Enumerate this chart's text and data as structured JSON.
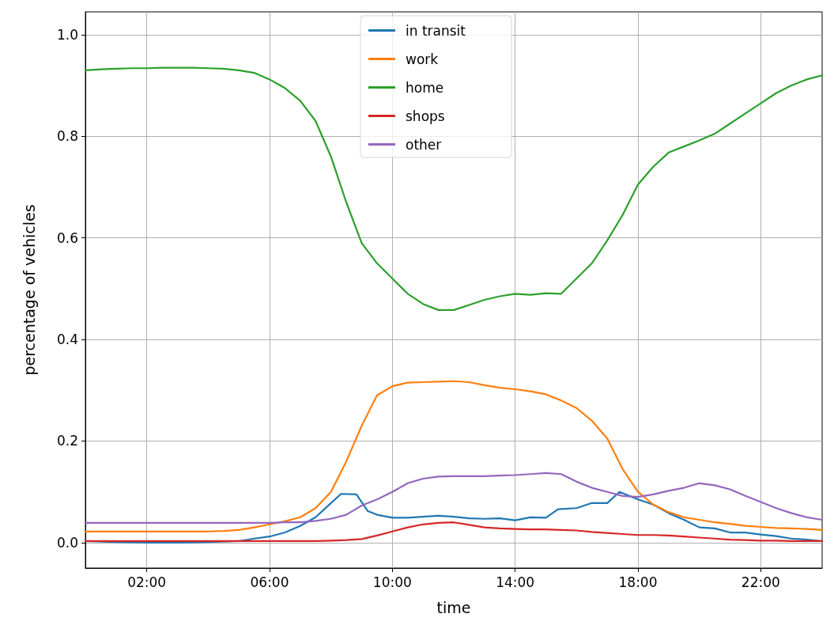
{
  "chart_data": {
    "type": "line",
    "xlabel": "time",
    "ylabel": "percentage of vehicles",
    "x": [
      0,
      0.5,
      1,
      1.5,
      2,
      2.5,
      3,
      3.5,
      4,
      4.5,
      5,
      5.5,
      6,
      6.5,
      7,
      7.5,
      8,
      8.5,
      9,
      9.5,
      10,
      10.5,
      11,
      11.5,
      12,
      12.5,
      13,
      13.5,
      14,
      14.5,
      15,
      15.5,
      16,
      16.5,
      17,
      17.5,
      18,
      18.5,
      19,
      19.5,
      20,
      20.5,
      21,
      21.5,
      22,
      22.5,
      23,
      23.5,
      24
    ],
    "series": [
      {
        "name": "in transit",
        "color": "#1f77b4",
        "x": [
          0,
          1,
          2,
          3,
          4,
          5,
          5.5,
          6,
          6.5,
          7,
          7.5,
          8,
          8.33,
          8.83,
          9.2,
          9.5,
          10,
          10.5,
          11,
          11.5,
          12,
          12.5,
          13,
          13.5,
          14,
          14.5,
          15,
          15.4,
          16,
          16.5,
          17,
          17.4,
          18,
          18.5,
          19,
          19.5,
          20,
          20.5,
          21,
          21.5,
          22,
          22.5,
          23,
          23.5,
          24
        ],
        "values": [
          0.003,
          0.001,
          0,
          0,
          0.001,
          0.003,
          0.008,
          0.012,
          0.02,
          0.033,
          0.05,
          0.078,
          0.096,
          0.095,
          0.062,
          0.055,
          0.049,
          0.049,
          0.051,
          0.053,
          0.051,
          0.048,
          0.047,
          0.048,
          0.044,
          0.05,
          0.049,
          0.066,
          0.068,
          0.078,
          0.078,
          0.1,
          0.085,
          0.075,
          0.058,
          0.045,
          0.03,
          0.028,
          0.02,
          0.02,
          0.016,
          0.013,
          0.008,
          0.006,
          0.003
        ]
      },
      {
        "name": "work",
        "color": "#ff7f0e",
        "values": [
          0.022,
          0.022,
          0.022,
          0.022,
          0.022,
          0.022,
          0.022,
          0.022,
          0.022,
          0.023,
          0.025,
          0.03,
          0.036,
          0.042,
          0.05,
          0.068,
          0.1,
          0.16,
          0.23,
          0.29,
          0.308,
          0.315,
          0.316,
          0.317,
          0.318,
          0.316,
          0.31,
          0.305,
          0.302,
          0.298,
          0.292,
          0.28,
          0.265,
          0.24,
          0.205,
          0.145,
          0.1,
          0.075,
          0.06,
          0.05,
          0.045,
          0.04,
          0.037,
          0.033,
          0.031,
          0.029,
          0.028,
          0.027,
          0.025
        ]
      },
      {
        "name": "home",
        "color": "#2ca02c",
        "values": [
          0.93,
          0.932,
          0.933,
          0.934,
          0.934,
          0.935,
          0.935,
          0.935,
          0.934,
          0.933,
          0.93,
          0.925,
          0.912,
          0.895,
          0.87,
          0.83,
          0.76,
          0.67,
          0.59,
          0.55,
          0.52,
          0.49,
          0.47,
          0.458,
          0.458,
          0.468,
          0.478,
          0.485,
          0.49,
          0.488,
          0.491,
          0.49,
          0.52,
          0.55,
          0.595,
          0.645,
          0.705,
          0.74,
          0.768,
          0.78,
          0.792,
          0.805,
          0.825,
          0.845,
          0.865,
          0.885,
          0.9,
          0.912,
          0.92
        ]
      },
      {
        "name": "shops",
        "color": "#d62728",
        "values": [
          0.003,
          0.003,
          0.003,
          0.003,
          0.003,
          0.003,
          0.003,
          0.003,
          0.003,
          0.003,
          0.003,
          0.003,
          0.003,
          0.003,
          0.003,
          0.003,
          0.004,
          0.005,
          0.007,
          0.014,
          0.022,
          0.03,
          0.036,
          0.039,
          0.04,
          0.035,
          0.03,
          0.028,
          0.027,
          0.026,
          0.026,
          0.025,
          0.024,
          0.021,
          0.019,
          0.017,
          0.015,
          0.015,
          0.014,
          0.012,
          0.01,
          0.008,
          0.006,
          0.005,
          0.004,
          0.004,
          0.003,
          0.003,
          0.003
        ]
      },
      {
        "name": "other",
        "color": "#9467bd",
        "values": [
          0.039,
          0.039,
          0.039,
          0.039,
          0.039,
          0.039,
          0.039,
          0.039,
          0.039,
          0.039,
          0.039,
          0.039,
          0.039,
          0.04,
          0.04,
          0.043,
          0.047,
          0.055,
          0.073,
          0.085,
          0.1,
          0.117,
          0.126,
          0.13,
          0.131,
          0.131,
          0.131,
          0.132,
          0.133,
          0.135,
          0.137,
          0.135,
          0.12,
          0.108,
          0.1,
          0.092,
          0.09,
          0.095,
          0.102,
          0.108,
          0.117,
          0.113,
          0.105,
          0.092,
          0.08,
          0.068,
          0.058,
          0.05,
          0.045
        ]
      }
    ],
    "xlim": [
      0,
      24
    ],
    "xticks": [
      {
        "value": 2,
        "label": "02:00"
      },
      {
        "value": 6,
        "label": "06:00"
      },
      {
        "value": 10,
        "label": "10:00"
      },
      {
        "value": 14,
        "label": "14:00"
      },
      {
        "value": 18,
        "label": "18:00"
      },
      {
        "value": 22,
        "label": "22:00"
      }
    ],
    "ylim": [
      -0.05,
      1.045
    ],
    "yticks": [
      {
        "value": 0,
        "label": "0.0"
      },
      0.2,
      0.4,
      0.6,
      0.8,
      {
        "value": 1,
        "label": "1.0"
      }
    ],
    "grid": true,
    "legend": "top",
    "marker": "none",
    "line_style": "solid"
  }
}
